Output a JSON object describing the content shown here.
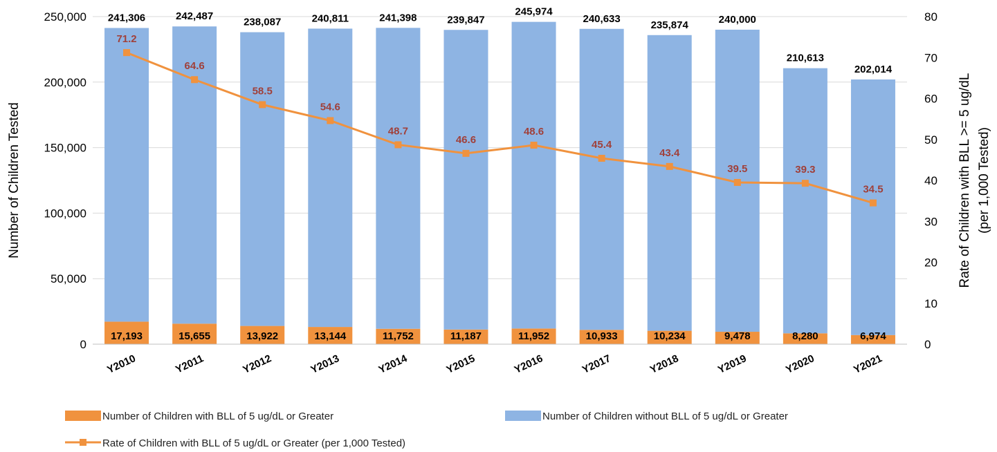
{
  "chart_data": {
    "type": "bar",
    "stacked": true,
    "categories": [
      "Y2010",
      "Y2011",
      "Y2012",
      "Y2013",
      "Y2014",
      "Y2015",
      "Y2016",
      "Y2017",
      "Y2018",
      "Y2019",
      "Y2020",
      "Y2021"
    ],
    "series": [
      {
        "name": "Number of Children with BLL of 5 ug/dL or Greater",
        "type": "bar",
        "axis": "left",
        "color": "#f0923e",
        "values": [
          17193,
          15655,
          13922,
          13144,
          11752,
          11187,
          11952,
          10933,
          10234,
          9478,
          8280,
          6974
        ],
        "labels": [
          "17,193",
          "15,655",
          "13,922",
          "13,144",
          "11,752",
          "11,187",
          "11,952",
          "10,933",
          "10,234",
          "9,478",
          "8,280",
          "6,974"
        ]
      },
      {
        "name": "Number of Children without BLL of 5 ug/dL or Greater",
        "type": "bar",
        "axis": "left",
        "color": "#8eb4e3",
        "values": [
          224113,
          226832,
          224165,
          227667,
          229646,
          228660,
          234022,
          229700,
          225640,
          230522,
          202333,
          195040
        ]
      },
      {
        "name": "Rate of Children with BLL of 5 ug/dL or Greater (per 1,000 Tested)",
        "type": "line",
        "axis": "right",
        "color": "#f0923e",
        "values": [
          71.2,
          64.6,
          58.5,
          54.6,
          48.7,
          46.6,
          48.6,
          45.4,
          43.4,
          39.5,
          39.3,
          34.5
        ],
        "labels": [
          "71.2",
          "64.6",
          "58.5",
          "54.6",
          "48.7",
          "46.6",
          "48.6",
          "45.4",
          "43.4",
          "39.5",
          "39.3",
          "34.5"
        ]
      }
    ],
    "totals": [
      241306,
      242487,
      238087,
      240811,
      241398,
      239847,
      245974,
      240633,
      235874,
      240000,
      210613,
      202014
    ],
    "total_labels": [
      "241,306",
      "242,487",
      "238,087",
      "240,811",
      "241,398",
      "239,847",
      "245,974",
      "240,633",
      "235,874",
      "240,000",
      "210,613",
      "202,014"
    ],
    "ylabel": "Number of Children Tested",
    "ylabel_right": [
      "Rate of Children with BLL >= 5 ug/dL",
      "(per 1,000 Tested)"
    ],
    "ylim": [
      0,
      250000
    ],
    "ylim_right": [
      0,
      80
    ],
    "yticks": [
      "0",
      "50,000",
      "100,000",
      "150,000",
      "200,000",
      "250,000"
    ],
    "yticks_right": [
      "0",
      "10",
      "20",
      "30",
      "40",
      "50",
      "60",
      "70",
      "80"
    ],
    "grid": true,
    "legend_position": "bottom",
    "rate_label_color": "#a0403a",
    "gridline_color": "#d9d9d9"
  }
}
